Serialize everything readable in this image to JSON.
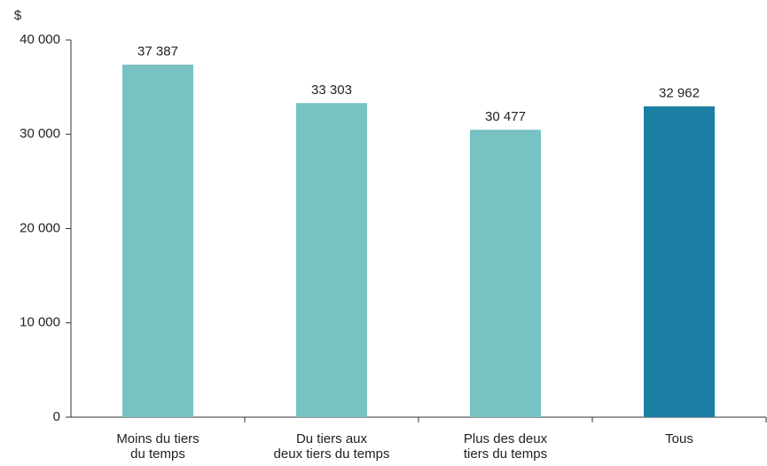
{
  "chart_data": {
    "type": "bar",
    "y_axis_label": "$",
    "categories": [
      [
        "Moins du tiers",
        "du temps"
      ],
      [
        "Du tiers aux",
        "deux tiers du temps"
      ],
      [
        "Plus des deux",
        "tiers du temps"
      ],
      [
        "Tous"
      ]
    ],
    "values": [
      37387,
      33303,
      30477,
      32962
    ],
    "value_labels": [
      "37 387",
      "33 303",
      "30 477",
      "32 962"
    ],
    "colors": [
      "#79c2c3",
      "#79c2c3",
      "#79c2c3",
      "#1a7fa3"
    ],
    "ylim": [
      0,
      40000
    ],
    "yticks": [
      0,
      {
        "value": 10000,
        "label": "10 000"
      },
      {
        "value": 20000,
        "label": "20 000"
      },
      {
        "value": 30000,
        "label": "30 000"
      },
      {
        "value": 40000,
        "label": "40 000"
      }
    ],
    "grid": false
  }
}
